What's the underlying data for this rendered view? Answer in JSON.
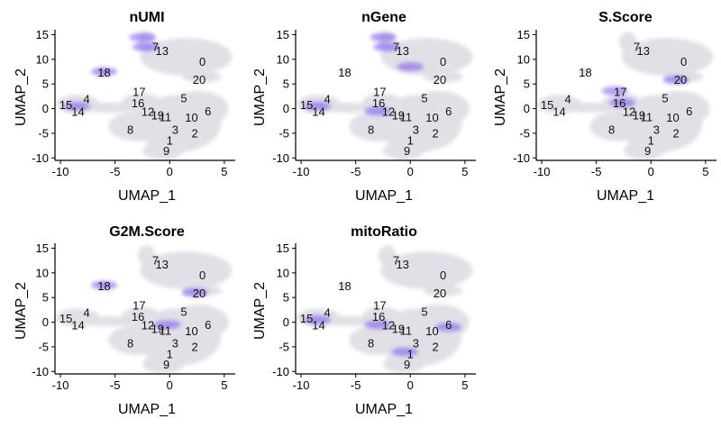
{
  "chart_data": [
    {
      "type": "scatter",
      "title": "nUMI",
      "xlabel": "UMAP_1",
      "ylabel": "UMAP_2",
      "xlim": [
        -10.5,
        6
      ],
      "ylim": [
        -10.5,
        16
      ],
      "x_ticks": [
        -10,
        -5,
        0,
        5
      ],
      "y_ticks": [
        -10,
        -5,
        0,
        5,
        10,
        15
      ],
      "grid": false,
      "legend": "none",
      "color_low": "#e0e0e6",
      "color_high": "#7b4ff0",
      "high_regions": [
        [
          -2.5,
          14.5
        ],
        [
          -2.2,
          12.5
        ],
        [
          -8.5,
          0.5
        ],
        [
          -6.0,
          7.5
        ]
      ]
    },
    {
      "type": "scatter",
      "title": "nGene",
      "xlabel": "UMAP_1",
      "ylabel": "UMAP_2",
      "xlim": [
        -10.5,
        6
      ],
      "ylim": [
        -10.5,
        16
      ],
      "x_ticks": [
        -10,
        -5,
        0,
        5
      ],
      "y_ticks": [
        -10,
        -5,
        0,
        5,
        10,
        15
      ],
      "grid": false,
      "legend": "none",
      "color_low": "#e0e0e6",
      "color_high": "#7b4ff0",
      "high_regions": [
        [
          -2.5,
          14.5
        ],
        [
          -2.2,
          12.5
        ],
        [
          -8.5,
          0.5
        ],
        [
          -3.0,
          -0.5
        ],
        [
          0,
          8.5
        ]
      ]
    },
    {
      "type": "scatter",
      "title": "S.Score",
      "xlabel": "UMAP_1",
      "ylabel": "UMAP_2",
      "xlim": [
        -10.5,
        6
      ],
      "ylim": [
        -10.5,
        16
      ],
      "x_ticks": [
        -10,
        -5,
        0,
        5
      ],
      "y_ticks": [
        -10,
        -5,
        0,
        5,
        10,
        15
      ],
      "grid": false,
      "legend": "none",
      "color_low": "#e0e0e6",
      "color_high": "#7b4ff0",
      "high_regions": [
        [
          -2.6,
          1.2
        ],
        [
          -3.3,
          3.6
        ],
        [
          2.3,
          5.8
        ]
      ]
    },
    {
      "type": "scatter",
      "title": "G2M.Score",
      "xlabel": "UMAP_1",
      "ylabel": "UMAP_2",
      "xlim": [
        -10.5,
        6
      ],
      "ylim": [
        -10.5,
        16
      ],
      "x_ticks": [
        -10,
        -5,
        0,
        5
      ],
      "y_ticks": [
        -10,
        -5,
        0,
        5,
        10,
        15
      ],
      "grid": false,
      "legend": "none",
      "color_low": "#e0e0e6",
      "color_high": "#7b4ff0",
      "high_regions": [
        [
          2.3,
          6.0
        ],
        [
          -6.0,
          7.5
        ],
        [
          -0.2,
          -0.5
        ]
      ]
    },
    {
      "type": "scatter",
      "title": "mitoRatio",
      "xlabel": "UMAP_1",
      "ylabel": "UMAP_2",
      "xlim": [
        -10.5,
        6
      ],
      "ylim": [
        -10.5,
        16
      ],
      "x_ticks": [
        -10,
        -5,
        0,
        5
      ],
      "y_ticks": [
        -10,
        -5,
        0,
        5,
        10,
        15
      ],
      "grid": false,
      "legend": "none",
      "color_low": "#e0e0e6",
      "color_high": "#7b4ff0",
      "high_regions": [
        [
          -8.5,
          0.5
        ],
        [
          -3.0,
          -0.5
        ],
        [
          3.5,
          -1.0
        ],
        [
          -0.5,
          -6.0
        ]
      ]
    }
  ],
  "cluster_labels": [
    {
      "label": "0",
      "x": 3.0,
      "y": 9.5
    },
    {
      "label": "1",
      "x": 0.0,
      "y": -6.5
    },
    {
      "label": "2",
      "x": 2.3,
      "y": -5.0
    },
    {
      "label": "3",
      "x": 0.5,
      "y": -4.3
    },
    {
      "label": "5",
      "x": 1.3,
      "y": 2.1
    },
    {
      "label": "6",
      "x": 3.5,
      "y": -0.5
    },
    {
      "label": "7",
      "x": -1.3,
      "y": 12.5
    },
    {
      "label": "8",
      "x": -3.6,
      "y": -4.3
    },
    {
      "label": "9",
      "x": -0.3,
      "y": -8.6
    },
    {
      "label": "10",
      "x": 2.0,
      "y": -1.8
    },
    {
      "label": "11",
      "x": -0.4,
      "y": -1.7
    },
    {
      "label": "12",
      "x": -2.0,
      "y": -0.6
    },
    {
      "label": "13",
      "x": -0.7,
      "y": 11.7
    },
    {
      "label": "14",
      "x": -8.4,
      "y": -0.6
    },
    {
      "label": "15",
      "x": -9.5,
      "y": 0.7
    },
    {
      "label": "16",
      "x": -2.9,
      "y": 1.1
    },
    {
      "label": "17",
      "x": -2.8,
      "y": 3.4
    },
    {
      "label": "18",
      "x": -6.0,
      "y": 7.3
    },
    {
      "label": "19",
      "x": -1.1,
      "y": -1.4
    },
    {
      "label": "20",
      "x": 2.7,
      "y": 5.9
    },
    {
      "label": "4",
      "x": -7.6,
      "y": 1.9
    }
  ],
  "cluster_blobs": [
    {
      "cx": 1.5,
      "cy": 10.5,
      "rx": 4.2,
      "ry": 3.8
    },
    {
      "cx": -2.1,
      "cy": 13.5,
      "rx": 0.8,
      "ry": 2.1
    },
    {
      "cx": -0.8,
      "cy": 10.5,
      "rx": 1.2,
      "ry": 1.2
    },
    {
      "cx": 3.0,
      "cy": 6.4,
      "rx": 1.8,
      "ry": 1.1
    },
    {
      "cx": 0.8,
      "cy": -3.0,
      "rx": 3.9,
      "ry": 5.8
    },
    {
      "cx": 2.6,
      "cy": 0.0,
      "rx": 2.8,
      "ry": 3.6
    },
    {
      "cx": -3.0,
      "cy": -3.6,
      "rx": 2.6,
      "ry": 3.0
    },
    {
      "cx": -0.6,
      "cy": -8.5,
      "rx": 1.9,
      "ry": 1.8
    },
    {
      "cx": -8.4,
      "cy": 0.9,
      "rx": 2.0,
      "ry": 1.9
    },
    {
      "cx": -5.6,
      "cy": 0.2,
      "rx": 2.6,
      "ry": 1.0
    },
    {
      "cx": -2.6,
      "cy": 1.2,
      "rx": 1.8,
      "ry": 1.9
    },
    {
      "cx": -6.1,
      "cy": 7.5,
      "rx": 0.5,
      "ry": 0.7
    },
    {
      "cx": -1.3,
      "cy": -1.4,
      "rx": 1.3,
      "ry": 1.3
    }
  ]
}
